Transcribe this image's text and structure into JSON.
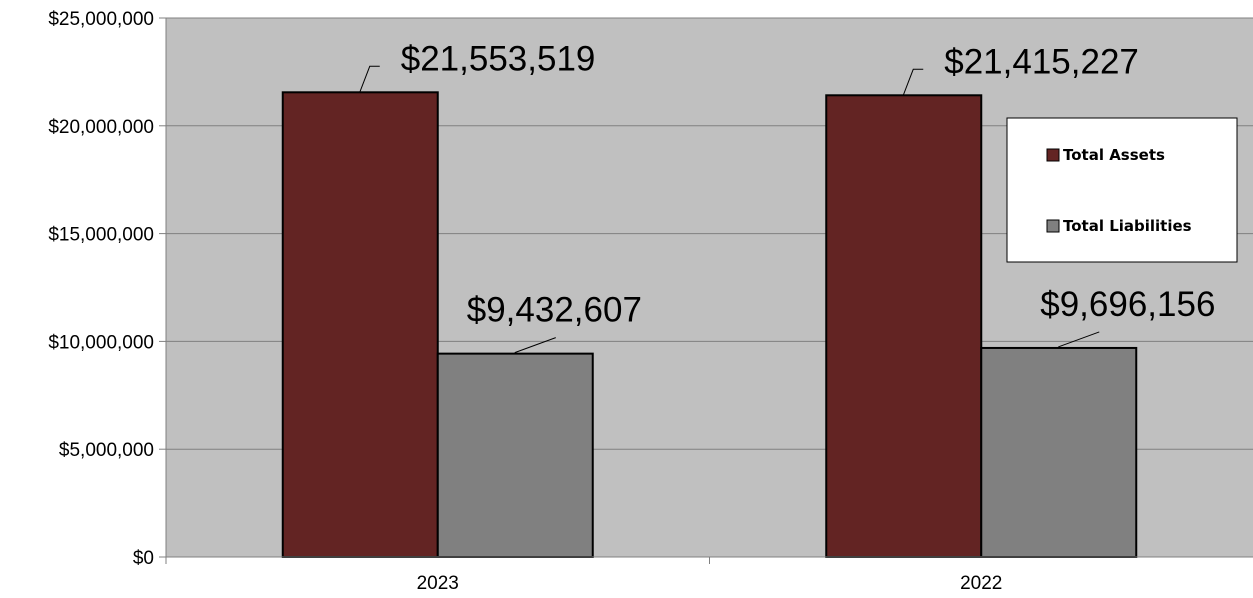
{
  "chart_data": {
    "type": "bar",
    "categories": [
      "2023",
      "2022"
    ],
    "series": [
      {
        "name": "Total Assets",
        "values": [
          21553519,
          21415227
        ],
        "color": "#632423"
      },
      {
        "name": "Total Liabilities",
        "values": [
          9432607,
          9696156
        ],
        "color": "#808080"
      }
    ],
    "data_labels": [
      [
        "$21,553,519",
        "$21,415,227"
      ],
      [
        "$9,432,607",
        "$9,696,156"
      ]
    ],
    "y_ticks": [
      "$0",
      "$5,000,000",
      "$10,000,000",
      "$15,000,000",
      "$20,000,000",
      "$25,000,000"
    ],
    "ylim": [
      0,
      25000000
    ],
    "grid": true,
    "plot_background": "#c0c0c0",
    "legend_position": "right"
  }
}
